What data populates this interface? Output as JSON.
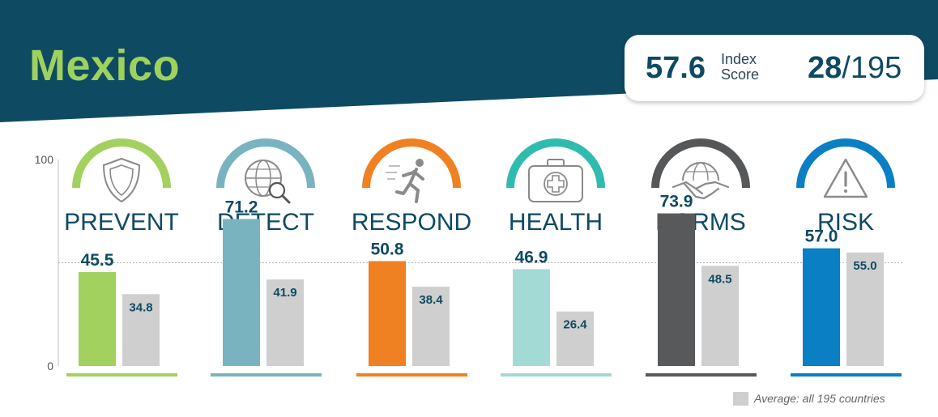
{
  "header": {
    "country": "Mexico",
    "index_score": "57.6",
    "index_label_line1": "Index",
    "index_label_line2": "Score",
    "rank": "28",
    "rank_total": "/195"
  },
  "legend": {
    "label": "Average: all 195 countries"
  },
  "colors": {
    "banner": "#0f4a63",
    "title_green": "#9fd15f",
    "average_bar": "#cfcfcf",
    "text_dark": "#0f4a63"
  },
  "chart_data": {
    "type": "bar",
    "title": "Mexico",
    "categories": [
      "PREVENT",
      "DETECT",
      "RESPOND",
      "HEALTH",
      "NORMS",
      "RISK"
    ],
    "series": [
      {
        "name": "Mexico",
        "values": [
          45.5,
          71.2,
          50.8,
          46.9,
          73.9,
          57.0
        ],
        "labels": [
          "45.5",
          "71.2",
          "50.8",
          "46.9",
          "73.9",
          "57.0"
        ]
      },
      {
        "name": "Average: all 195 countries",
        "values": [
          34.8,
          41.9,
          38.4,
          26.4,
          48.5,
          55.0
        ],
        "labels": [
          "34.8",
          "41.9",
          "38.4",
          "26.4",
          "48.5",
          "55.0"
        ]
      }
    ],
    "category_colors": [
      "#a3d15f",
      "#7ab3c0",
      "#f08122",
      "#a4dad6",
      "#58595b",
      "#0b7fc4"
    ],
    "arc_colors": [
      "#a3d15f",
      "#7ab3c0",
      "#f08122",
      "#2fbcae",
      "#555759",
      "#0b7fc4"
    ],
    "icons": [
      "shield-icon",
      "globe-magnifier-icon",
      "running-person-icon",
      "medical-kit-icon",
      "globe-handshake-icon",
      "warning-triangle-icon"
    ],
    "ylim": [
      0,
      100
    ],
    "yticks": [
      "0",
      "100"
    ],
    "reference_line": 50,
    "xlabel": "",
    "ylabel": ""
  }
}
